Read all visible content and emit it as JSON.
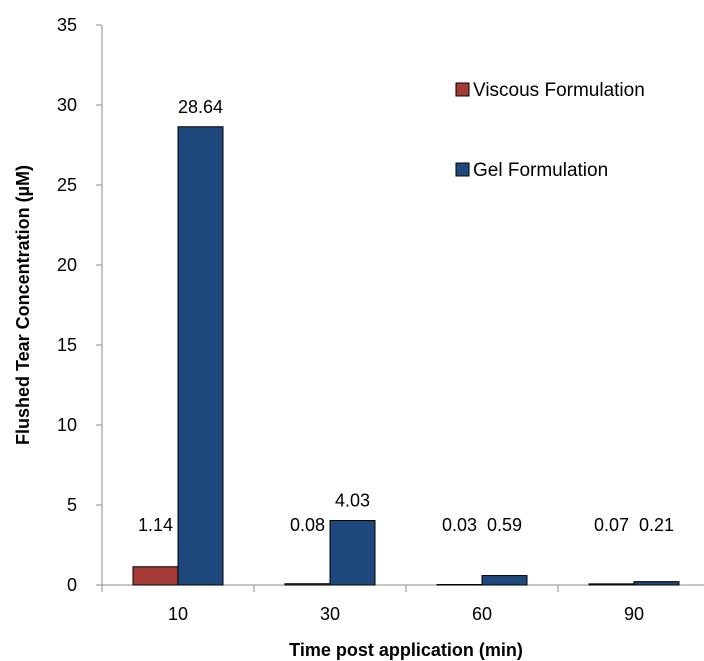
{
  "chart_data": {
    "type": "bar",
    "title": "",
    "xlabel": "Time post application (min)",
    "ylabel": "Flushed Tear Concentration (µM)",
    "categories": [
      "10",
      "30",
      "60",
      "90"
    ],
    "ylim": [
      0,
      35
    ],
    "yticks": [
      0,
      5,
      10,
      15,
      20,
      25,
      30,
      35
    ],
    "grid": false,
    "legend_position": "top-right",
    "series": [
      {
        "name": "Viscous Formulation",
        "color": "#a33a36",
        "values": [
          1.14,
          0.08,
          0.03,
          0.07
        ],
        "labels": [
          "1.14",
          "0.08",
          "0.03",
          "0.07"
        ]
      },
      {
        "name": "Gel Formulation",
        "color": "#1f497d",
        "values": [
          28.64,
          4.03,
          0.59,
          0.21
        ],
        "labels": [
          "28.64",
          "4.03",
          "0.59",
          "0.21"
        ]
      }
    ]
  }
}
